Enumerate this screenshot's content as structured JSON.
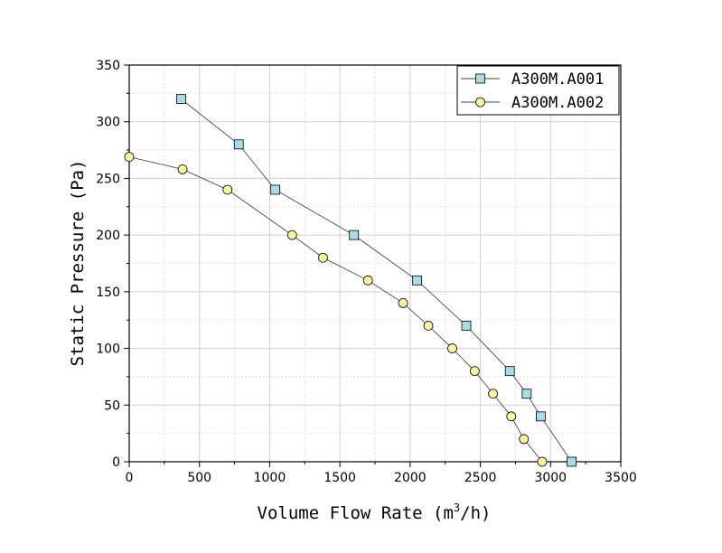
{
  "chart_data": {
    "type": "line",
    "title": "",
    "xlabel": "Volume Flow Rate (m",
    "xlabel_sup": "3",
    "xlabel_tail": "/h)",
    "ylabel": "Static Pressure (Pa)",
    "xlim": [
      0,
      3500
    ],
    "ylim": [
      0,
      350
    ],
    "xticks": [
      0,
      500,
      1000,
      1500,
      2000,
      2500,
      3000,
      3500
    ],
    "yticks": [
      0,
      50,
      100,
      150,
      200,
      250,
      300,
      350
    ],
    "grid": true,
    "legend_position": "top-right",
    "series": [
      {
        "name": "A300M.A001",
        "marker": "square",
        "color": "#a8dde8",
        "x": [
          370,
          780,
          1040,
          1600,
          2050,
          2400,
          2710,
          2830,
          2930,
          3150
        ],
        "y": [
          320,
          280,
          240,
          200,
          160,
          120,
          80,
          60,
          40,
          0
        ]
      },
      {
        "name": "A300M.A002",
        "marker": "circle",
        "color": "#fcf5a0",
        "x": [
          0,
          380,
          700,
          1160,
          1380,
          1700,
          1950,
          2130,
          2300,
          2460,
          2590,
          2720,
          2810,
          2940
        ],
        "y": [
          269,
          258,
          240,
          200,
          180,
          160,
          140,
          120,
          100,
          80,
          60,
          40,
          20,
          0
        ]
      }
    ]
  }
}
